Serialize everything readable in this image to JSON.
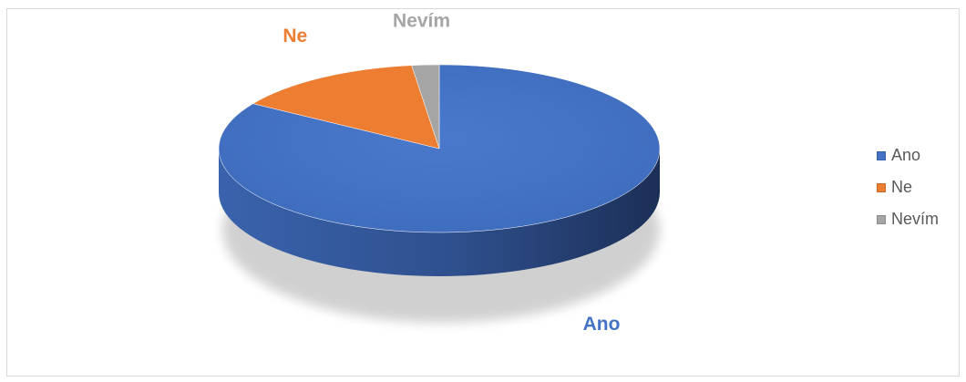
{
  "chart_data": {
    "type": "pie",
    "style": "3d",
    "categories": [
      "Ano",
      "Ne",
      "Nevím"
    ],
    "values": [
      84,
      14,
      2
    ],
    "unit": "%",
    "colors": [
      "#4472c4",
      "#ed7d31",
      "#a5a5a5"
    ],
    "data_labels": [
      "Ano",
      "Ne",
      "Nevím"
    ],
    "legend": {
      "position": "right",
      "items": [
        "Ano",
        "Ne",
        "Nevím"
      ]
    }
  }
}
